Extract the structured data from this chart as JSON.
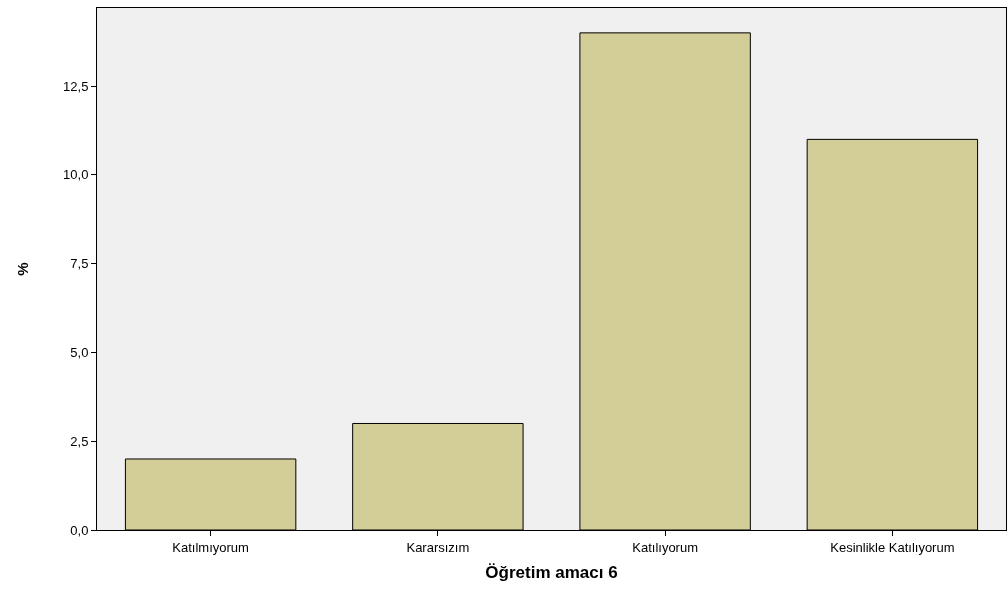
{
  "chart_data": {
    "type": "bar",
    "xlabel": "Öğretim amacı 6",
    "ylabel": "%",
    "categories": [
      "Katılmıyorum",
      "Kararsızım",
      "Katılıyorum",
      "Kesinlikle Katılıyorum"
    ],
    "values": [
      2,
      3,
      14,
      11
    ],
    "color": "#d3ce97",
    "ylim": [
      0,
      14.7
    ],
    "yticks": [
      {
        "value": 0,
        "label": "0,0"
      },
      {
        "value": 2.5,
        "label": "2,5"
      },
      {
        "value": 5,
        "label": "5,0"
      },
      {
        "value": 7.5,
        "label": "7,5"
      },
      {
        "value": 10,
        "label": "10,0"
      },
      {
        "value": 12.5,
        "label": "12,5"
      }
    ],
    "grid": false,
    "legend": false
  }
}
